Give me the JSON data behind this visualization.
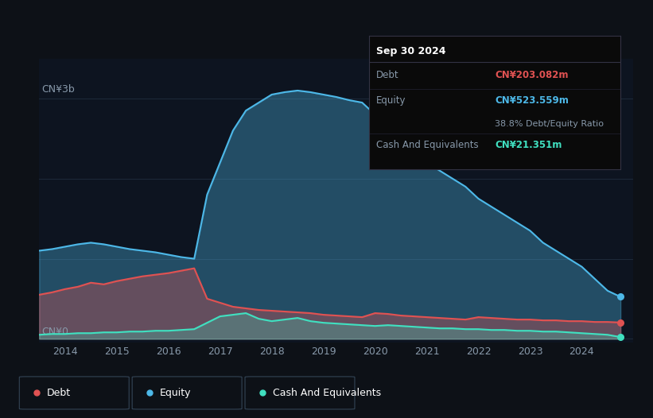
{
  "bg_color": "#0d1117",
  "plot_bg_color": "#0d1420",
  "grid_color": "#1e2a3a",
  "debt_color": "#e05252",
  "equity_color": "#4db8e8",
  "cash_color": "#40e0c0",
  "ylabel_3b": "CN¥3b",
  "ylabel_0": "CN¥0",
  "x_ticks": [
    2014,
    2015,
    2016,
    2017,
    2018,
    2019,
    2020,
    2021,
    2022,
    2023,
    2024
  ],
  "tooltip_title": "Sep 30 2024",
  "tooltip_debt_label": "Debt",
  "tooltip_debt_value": "CN¥203.082m",
  "tooltip_equity_label": "Equity",
  "tooltip_equity_value": "CN¥523.559m",
  "tooltip_ratio": "38.8% Debt/Equity Ratio",
  "tooltip_cash_label": "Cash And Equivalents",
  "tooltip_cash_value": "CN¥21.351m",
  "legend_debt": "Debt",
  "legend_equity": "Equity",
  "legend_cash": "Cash And Equivalents",
  "time": [
    2013.5,
    2013.75,
    2014.0,
    2014.25,
    2014.5,
    2014.75,
    2015.0,
    2015.25,
    2015.5,
    2015.75,
    2016.0,
    2016.25,
    2016.5,
    2016.75,
    2017.0,
    2017.25,
    2017.5,
    2017.75,
    2018.0,
    2018.25,
    2018.5,
    2018.75,
    2019.0,
    2019.25,
    2019.5,
    2019.75,
    2020.0,
    2020.25,
    2020.5,
    2020.75,
    2021.0,
    2021.25,
    2021.5,
    2021.75,
    2022.0,
    2022.25,
    2022.5,
    2022.75,
    2023.0,
    2023.25,
    2023.5,
    2023.75,
    2024.0,
    2024.25,
    2024.5,
    2024.75
  ],
  "debt": [
    0.55,
    0.58,
    0.62,
    0.65,
    0.7,
    0.68,
    0.72,
    0.75,
    0.78,
    0.8,
    0.82,
    0.85,
    0.88,
    0.5,
    0.45,
    0.4,
    0.38,
    0.36,
    0.35,
    0.34,
    0.33,
    0.32,
    0.3,
    0.29,
    0.28,
    0.27,
    0.32,
    0.31,
    0.29,
    0.28,
    0.27,
    0.26,
    0.25,
    0.24,
    0.27,
    0.26,
    0.25,
    0.24,
    0.24,
    0.23,
    0.23,
    0.22,
    0.22,
    0.21,
    0.21,
    0.203
  ],
  "equity": [
    1.1,
    1.12,
    1.15,
    1.18,
    1.2,
    1.18,
    1.15,
    1.12,
    1.1,
    1.08,
    1.05,
    1.02,
    1.0,
    1.8,
    2.2,
    2.6,
    2.85,
    2.95,
    3.05,
    3.08,
    3.1,
    3.08,
    3.05,
    3.02,
    2.98,
    2.95,
    2.8,
    2.65,
    2.5,
    2.35,
    2.2,
    2.1,
    2.0,
    1.9,
    1.75,
    1.65,
    1.55,
    1.45,
    1.35,
    1.2,
    1.1,
    1.0,
    0.9,
    0.75,
    0.6,
    0.524
  ],
  "cash": [
    0.05,
    0.06,
    0.06,
    0.07,
    0.07,
    0.08,
    0.08,
    0.09,
    0.09,
    0.1,
    0.1,
    0.11,
    0.12,
    0.2,
    0.28,
    0.3,
    0.32,
    0.25,
    0.22,
    0.24,
    0.26,
    0.22,
    0.2,
    0.19,
    0.18,
    0.17,
    0.16,
    0.17,
    0.16,
    0.15,
    0.14,
    0.13,
    0.13,
    0.12,
    0.12,
    0.11,
    0.11,
    0.1,
    0.1,
    0.09,
    0.09,
    0.08,
    0.07,
    0.06,
    0.05,
    0.021
  ]
}
